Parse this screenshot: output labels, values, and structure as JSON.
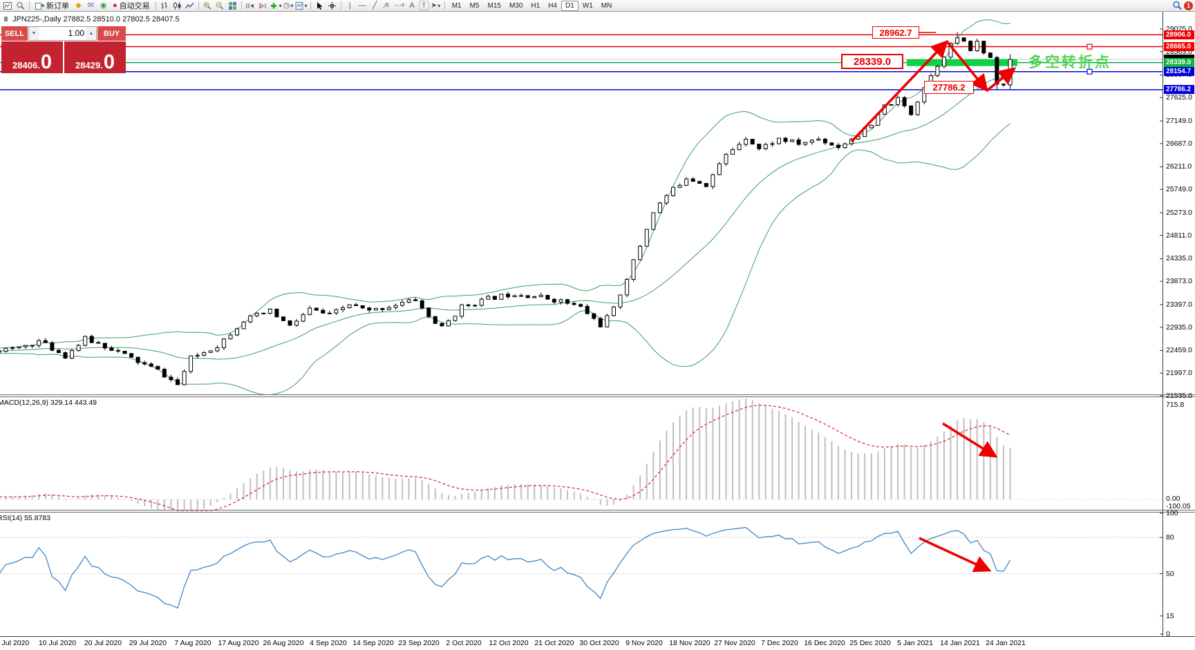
{
  "toolbar": {
    "new_order_label": "新订单",
    "autotrading_label": "自动交易",
    "timeframes": [
      "M1",
      "M5",
      "M15",
      "M30",
      "H1",
      "H4",
      "D1",
      "W1",
      "MN"
    ],
    "active_timeframe": "D1",
    "notification_count": "1",
    "drawing_letters": {
      "vline": "|",
      "hline": "—",
      "trend": "╱",
      "channel": "∕",
      "channel_sub": "E",
      "fibo": "⋯",
      "fibo_sub": "F",
      "text": "A",
      "label": "T",
      "arrows": "➤"
    }
  },
  "chart": {
    "title_symbol": "JPN225-,Daily",
    "title_ohlc": "27882.5 28510.0 27802.5 28407.5"
  },
  "trade_panel": {
    "sell_label": "SELL",
    "buy_label": "BUY",
    "volume": "1.00",
    "sell_price_main": "28406.",
    "sell_price_big": "0",
    "buy_price_main": "28429.",
    "buy_price_big": "0"
  },
  "indicators": {
    "macd_label": "MACD(12,26,9) 329.14 443.49",
    "rsi_label": "RSI(14) 55.8783"
  },
  "annotations": {
    "resistance_label": "28962.7",
    "pivot_label": "28339.0",
    "support_label": "27786.2",
    "pivot_text": "多空转折点"
  },
  "chart_data": {
    "type": "candlestick+indicators",
    "symbol": "JPN225-",
    "period": "Daily",
    "ohlc_display": {
      "open": "27882.5",
      "high": "28510.0",
      "low": "27802.5",
      "close": "28407.5"
    },
    "bid": 28406.0,
    "ask": 28429.0,
    "axis_range": {
      "top": 29025.0,
      "bottom": 21535.0
    },
    "price_axis_ticks": [
      29025.0,
      28563.0,
      28087.0,
      27625.0,
      27149.0,
      26687.0,
      26211.0,
      25749.0,
      25273.0,
      24811.0,
      24335.0,
      23873.0,
      23397.0,
      22935.0,
      22459.0,
      21997.0,
      21535.0
    ],
    "price_lines": [
      {
        "value": 28906.0,
        "color": "#ee0000",
        "label_bg": "#f00000",
        "label": "28906.0",
        "marker": false
      },
      {
        "value": 28665.0,
        "color": "#ee0000",
        "label_bg": "#f00000",
        "label": "28665.0",
        "marker": true
      },
      {
        "value": 28339.0,
        "color": "#00a651",
        "label_bg": "#0db53c",
        "label": "28339.0",
        "marker": false
      },
      {
        "value": 28154.7,
        "color": "#0000e6",
        "label_bg": "#0000dd",
        "label": "28154.7",
        "marker": true
      },
      {
        "value": 27786.2,
        "color": "#0000e6",
        "label_bg": "#0000dd",
        "label": "27786.2",
        "marker": false
      }
    ],
    "bid_line_value": 28406.0,
    "highlight_bar": {
      "value": 28339.0,
      "color": "#0ed145"
    },
    "bollinger": {
      "period": 20,
      "deviation": 2,
      "color": "#3aa05f"
    },
    "macd_axis": {
      "max": "715.8",
      "zero": "0.00",
      "min": "-100.05"
    },
    "rsi_axis_ticks": [
      100,
      80,
      50,
      15,
      0
    ],
    "rsi_levels": [
      80,
      50
    ],
    "date_ticks": [
      "1 Jul 2020",
      "10 Jul 2020",
      "20 Jul 2020",
      "29 Jul 2020",
      "7 Aug 2020",
      "17 Aug 2020",
      "26 Aug 2020",
      "4 Sep 2020",
      "14 Sep 2020",
      "23 Sep 2020",
      "2 Oct 2020",
      "12 Oct 2020",
      "21 Oct 2020",
      "30 Oct 2020",
      "9 Nov 2020",
      "18 Nov 2020",
      "27 Nov 2020",
      "7 Dec 2020",
      "16 Dec 2020",
      "25 Dec 2020",
      "5 Jan 2021",
      "14 Jan 2021",
      "24 Jan 2021"
    ],
    "key_points": {
      "swing_high": 28962.7,
      "swing_low_recent": 27786.2,
      "july_low": 21760
    },
    "price_waypoints": [
      [
        -45,
        22350
      ],
      [
        0,
        22480
      ],
      [
        4,
        22650
      ],
      [
        8,
        22350
      ],
      [
        11,
        22700
      ],
      [
        15,
        22500
      ],
      [
        19,
        22230
      ],
      [
        22,
        22050
      ],
      [
        25,
        21760
      ],
      [
        27,
        22300
      ],
      [
        31,
        22560
      ],
      [
        35,
        23080
      ],
      [
        39,
        23260
      ],
      [
        42,
        22950
      ],
      [
        45,
        23300
      ],
      [
        48,
        23180
      ],
      [
        51,
        23400
      ],
      [
        54,
        23260
      ],
      [
        58,
        23400
      ],
      [
        61,
        23500
      ],
      [
        63,
        23150
      ],
      [
        65,
        22920
      ],
      [
        68,
        23350
      ],
      [
        72,
        23520
      ],
      [
        76,
        23630
      ],
      [
        80,
        23550
      ],
      [
        83,
        23470
      ],
      [
        86,
        23340
      ],
      [
        89,
        22980
      ],
      [
        91,
        23300
      ],
      [
        93,
        23950
      ],
      [
        95,
        24600
      ],
      [
        97,
        25300
      ],
      [
        99,
        25620
      ],
      [
        102,
        26000
      ],
      [
        105,
        25850
      ],
      [
        108,
        26450
      ],
      [
        111,
        26820
      ],
      [
        113,
        26580
      ],
      [
        116,
        26780
      ],
      [
        119,
        26680
      ],
      [
        122,
        26780
      ],
      [
        125,
        26620
      ],
      [
        128,
        26870
      ],
      [
        130,
        27050
      ],
      [
        132,
        27450
      ],
      [
        134,
        27580
      ],
      [
        136,
        27300
      ],
      [
        138,
        27850
      ],
      [
        140,
        28300
      ],
      [
        142,
        28700
      ],
      [
        143,
        28850
      ],
      [
        145,
        28600
      ],
      [
        146,
        28750
      ],
      [
        147,
        28550
      ],
      [
        148,
        28450
      ],
      [
        149,
        27950
      ],
      [
        150,
        27882.5
      ],
      [
        151,
        28407.5
      ]
    ]
  }
}
